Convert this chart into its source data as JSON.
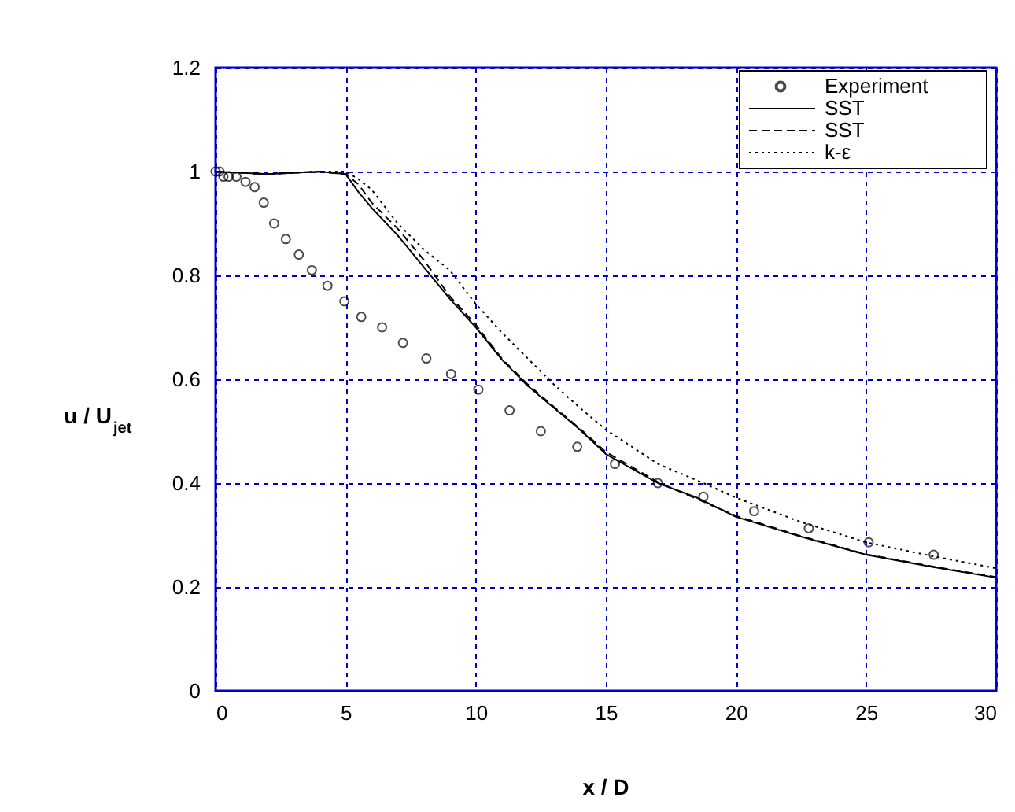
{
  "chart_data": {
    "type": "line",
    "xlabel": "x / D",
    "ylabel": "u / U$_{jet}$",
    "xlim": [
      0,
      30
    ],
    "ylim": [
      0,
      1.2
    ],
    "xticks": [
      0,
      5,
      10,
      15,
      20,
      25,
      30
    ],
    "yticks": [
      0,
      0.2,
      0.4,
      0.6,
      0.8,
      1,
      1.2
    ],
    "grid": true,
    "legend": "top right",
    "series": [
      {
        "name": "Experiment",
        "type": "scatter",
        "marker": "circle",
        "color": "#000000",
        "x": [
          0,
          0.15,
          0.3,
          0.5,
          0.8,
          1.15,
          1.5,
          1.85,
          2.25,
          2.7,
          3.2,
          3.7,
          4.3,
          4.95,
          5.6,
          6.4,
          7.2,
          8.1,
          9.05,
          10.1,
          11.3,
          12.5,
          13.9,
          15.35,
          17.0,
          18.75,
          20.7,
          22.8,
          25.1,
          27.6
        ],
        "values": [
          1.0,
          1.0,
          0.99,
          0.99,
          0.99,
          0.98,
          0.97,
          0.94,
          0.9,
          0.87,
          0.84,
          0.81,
          0.78,
          0.75,
          0.72,
          0.7,
          0.67,
          0.64,
          0.61,
          0.58,
          0.54,
          0.5,
          0.47,
          0.437,
          0.4,
          0.374,
          0.346,
          0.313,
          0.286,
          0.262
        ]
      },
      {
        "name": "SST",
        "line_style": "solid",
        "color": "#000000",
        "x": [
          0,
          2,
          4,
          5,
          5.5,
          6,
          7,
          8,
          9,
          10,
          11,
          12,
          13,
          14,
          15,
          17,
          18.5,
          20,
          22.5,
          25,
          27.5,
          30
        ],
        "values": [
          1.0,
          0.995,
          1.0,
          0.995,
          0.96,
          0.93,
          0.877,
          0.816,
          0.755,
          0.7,
          0.638,
          0.587,
          0.545,
          0.503,
          0.456,
          0.4,
          0.372,
          0.335,
          0.297,
          0.262,
          0.239,
          0.218
        ]
      },
      {
        "name": "SST",
        "line_style": "dashed",
        "color": "#000000",
        "x": [
          0,
          2,
          4,
          5,
          5.5,
          6,
          7,
          8,
          9,
          10,
          11,
          12,
          13,
          14,
          15,
          17,
          20,
          22.5,
          25,
          27.5,
          30
        ],
        "values": [
          1.0,
          0.995,
          1.0,
          0.995,
          0.975,
          0.94,
          0.89,
          0.83,
          0.76,
          0.705,
          0.64,
          0.59,
          0.547,
          0.505,
          0.46,
          0.402,
          0.337,
          0.298,
          0.263,
          0.24,
          0.219
        ]
      },
      {
        "name": "k-ε",
        "line_style": "dotted",
        "color": "#000000",
        "x": [
          0,
          2,
          4,
          5,
          5.5,
          6,
          7,
          8,
          9,
          10,
          11,
          12,
          13,
          14,
          15,
          17,
          18.75,
          20,
          22.5,
          25,
          27.5,
          30
        ],
        "values": [
          1.0,
          0.995,
          1.0,
          1.0,
          0.985,
          0.965,
          0.9,
          0.85,
          0.81,
          0.745,
          0.69,
          0.64,
          0.59,
          0.545,
          0.503,
          0.437,
          0.4,
          0.372,
          0.325,
          0.286,
          0.26,
          0.236
        ]
      }
    ]
  }
}
